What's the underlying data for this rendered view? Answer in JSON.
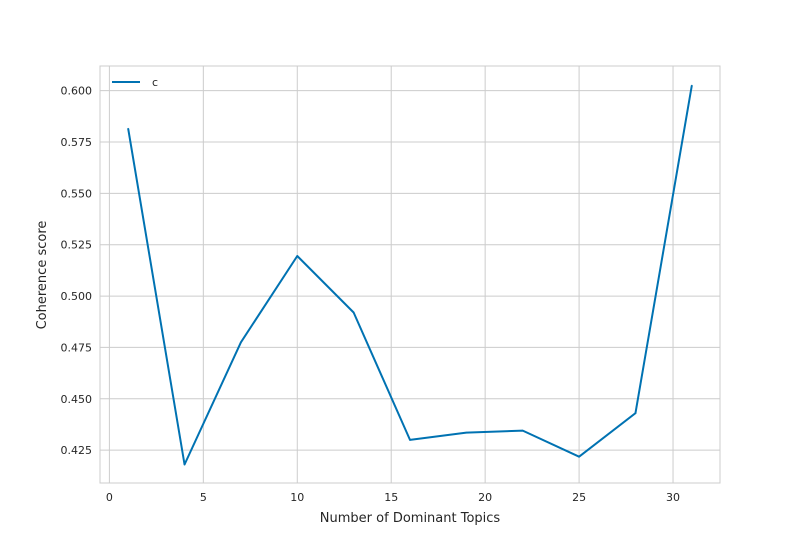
{
  "chart_data": {
    "type": "line",
    "title": "",
    "xlabel": "Number of Dominant Topics",
    "ylabel": "Coherence score",
    "xlim": [
      -0.5,
      32.5
    ],
    "ylim": [
      0.409,
      0.612
    ],
    "xticks": [
      0,
      5,
      10,
      15,
      20,
      25,
      30
    ],
    "xtick_labels": [
      "0",
      "5",
      "10",
      "15",
      "20",
      "25",
      "30"
    ],
    "yticks": [
      0.425,
      0.45,
      0.475,
      0.5,
      0.525,
      0.55,
      0.575,
      0.6
    ],
    "ytick_labels": [
      "0.425",
      "0.450",
      "0.475",
      "0.500",
      "0.525",
      "0.550",
      "0.575",
      "0.600"
    ],
    "grid": true,
    "legend_position": "top-left",
    "series": [
      {
        "name": "c",
        "color": "#0072b2",
        "x": [
          1,
          4,
          7,
          10,
          13,
          16,
          19,
          22,
          25,
          28,
          31
        ],
        "y": [
          0.5815,
          0.418,
          0.4775,
          0.5195,
          0.492,
          0.43,
          0.4335,
          0.4345,
          0.4218,
          0.443,
          0.6025
        ]
      }
    ]
  }
}
